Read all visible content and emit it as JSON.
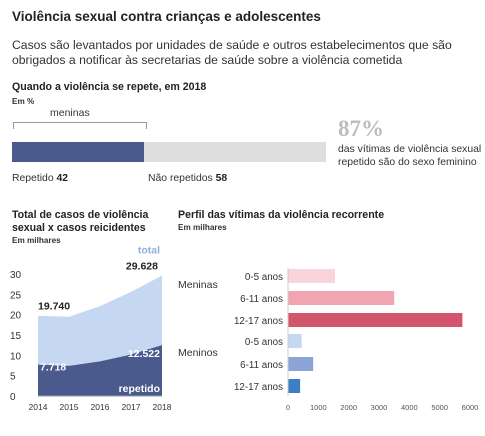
{
  "header": {
    "title": "Violência sexual contra crianças e adolescentes",
    "subtitle": "Casos são levantados por unidades de saúde e outros estabelecimentos que são obrigados a notificar às secretarias de saúde sobre a violência cometida"
  },
  "colors": {
    "navy": "#4a5a8d",
    "light_blue": "#c6d8f1",
    "light_gray": "#dedede",
    "pink_light": "#f9d5db",
    "pink_mid": "#f1a5b3",
    "red": "#d1566b",
    "blue_light": "#c6d8f1",
    "blue_mid": "#8ba3d6",
    "blue_dark": "#3d7fc4",
    "total_label": "#8fafdc"
  },
  "chart_data": [
    {
      "type": "bar",
      "stacked": true,
      "orientation": "horizontal",
      "title": "Quando a violência se repete, em 2018",
      "unit": "Em %",
      "callout": "meninas",
      "series": [
        {
          "name": "Repetido",
          "value": 42
        },
        {
          "name": "Não repetidos",
          "value": 58
        }
      ],
      "segment_labels": [
        {
          "text": "Repetido",
          "value": "42"
        },
        {
          "text": "Não repetidos",
          "value": "58"
        }
      ],
      "highlight": {
        "value": "87%",
        "text": "das vítimas de violência sexual repetido são do sexo feminino"
      }
    },
    {
      "type": "area",
      "title": "Total de casos de violência sexual x casos reicidentes",
      "unit": "Em milhares",
      "x": [
        2014,
        2015,
        2016,
        2017,
        2018
      ],
      "x_ticks": [
        "2014",
        "2015",
        "2016",
        "2017",
        "2018"
      ],
      "y_ticks": [
        "30",
        "25",
        "20",
        "15",
        "10",
        "5",
        "0"
      ],
      "ylim": [
        0,
        30
      ],
      "series": [
        {
          "name": "total",
          "values": [
            19.74,
            19.5,
            22.1,
            25.6,
            29.628
          ]
        },
        {
          "name": "repetido",
          "values": [
            7.718,
            7.4,
            8.5,
            10.2,
            12.522
          ]
        }
      ],
      "annotations": [
        {
          "text": "19.740"
        },
        {
          "text": "29.628"
        },
        {
          "text": "7.718"
        },
        {
          "text": "12.522"
        }
      ],
      "series_labels": [
        "total",
        "repetido"
      ]
    },
    {
      "type": "bar",
      "orientation": "horizontal",
      "title": "Perfil das vítimas da violência recorrente",
      "unit": "Em milhares",
      "xlim": [
        0,
        6000
      ],
      "x_ticks": [
        "0",
        "1000",
        "2000",
        "3000",
        "4000",
        "5000",
        "6000"
      ],
      "groups": [
        {
          "name": "Meninas",
          "bars": [
            {
              "label": "0-5 anos",
              "value": 1550
            },
            {
              "label": "6-11 anos",
              "value": 3500
            },
            {
              "label": "12-17 anos",
              "value": 5750
            }
          ]
        },
        {
          "name": "Meninos",
          "bars": [
            {
              "label": "0-5 anos",
              "value": 450
            },
            {
              "label": "6-11 anos",
              "value": 830
            },
            {
              "label": "12-17 anos",
              "value": 400
            }
          ]
        }
      ]
    }
  ]
}
